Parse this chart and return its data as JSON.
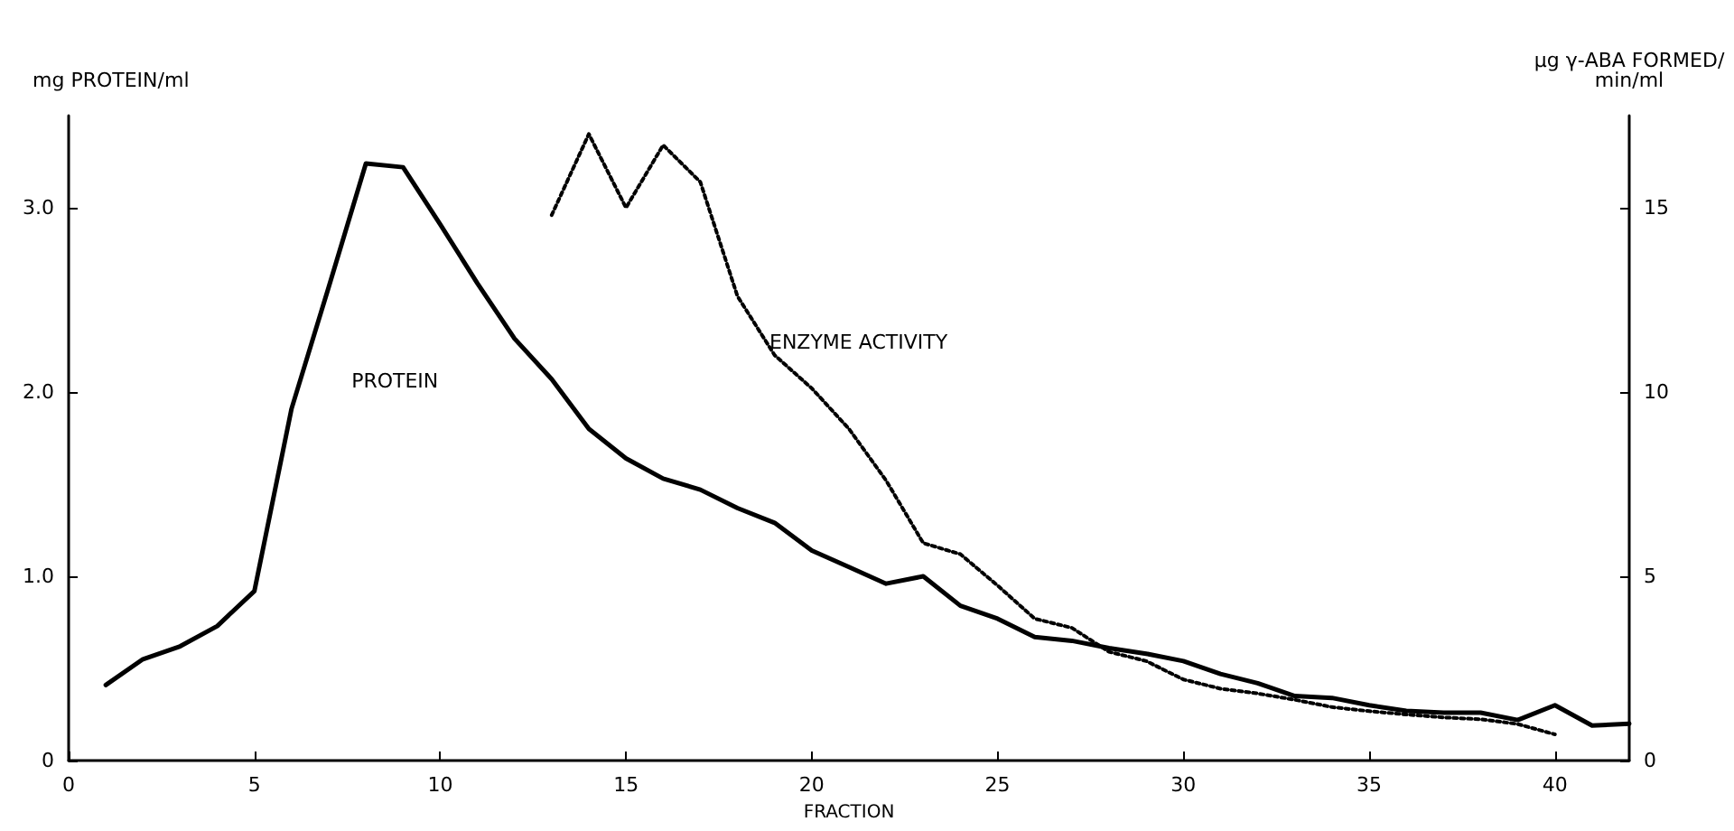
{
  "chart_data": {
    "type": "line",
    "xlabel": "FRACTION",
    "ylabel": "mg PROTEIN/ml",
    "y2label": "µg γ-ABA FORMED/\nmin/ml",
    "xlim": [
      0,
      42
    ],
    "xticks": [
      0,
      5,
      10,
      15,
      20,
      25,
      30,
      35,
      40
    ],
    "ylim": [
      0,
      3.5
    ],
    "yticks": [
      {
        "value": 0,
        "label": "0"
      },
      {
        "value": 1,
        "label": "1.0"
      },
      {
        "value": 2,
        "label": "2.0"
      },
      {
        "value": 3,
        "label": "3.0"
      }
    ],
    "y2lim": [
      0,
      17.5
    ],
    "y2ticks": [
      0,
      5,
      10,
      15
    ],
    "grid": false,
    "legend": false,
    "marker": "none",
    "series": [
      {
        "name": "PROTEIN",
        "color": "#000000",
        "line_style": "solid",
        "x": [
          1,
          2,
          3,
          4,
          5,
          6,
          7,
          8,
          9,
          10,
          11,
          12,
          13,
          14,
          15,
          16,
          17,
          18,
          19,
          20,
          21,
          22,
          23,
          24,
          25,
          26,
          27,
          28,
          29,
          30,
          31,
          32,
          33,
          34,
          35,
          36,
          37,
          38,
          39,
          40,
          41,
          42
        ],
        "values": [
          0.41,
          0.55,
          0.62,
          0.73,
          0.92,
          1.91,
          2.57,
          3.24,
          3.22,
          2.91,
          2.59,
          2.29,
          2.07,
          1.8,
          1.64,
          1.53,
          1.47,
          1.37,
          1.29,
          1.14,
          1.05,
          0.96,
          1.0,
          0.84,
          0.77,
          0.67,
          0.65,
          0.61,
          0.58,
          0.54,
          0.47,
          0.42,
          0.35,
          0.34,
          0.3,
          0.27,
          0.26,
          0.26,
          0.22,
          0.3,
          0.19,
          0.2
        ]
      },
      {
        "name": "ENZYME ACTIVITY",
        "color": "#000000",
        "line_style": "dotted",
        "axis": "y2",
        "x": [
          13,
          14,
          15,
          16,
          17,
          18,
          19,
          20,
          21,
          22,
          23,
          24,
          25,
          26,
          27,
          28,
          29,
          30,
          31,
          32,
          33,
          34,
          35,
          36,
          37,
          38,
          39,
          40
        ],
        "values": [
          14.8,
          17.0,
          15.0,
          16.7,
          15.7,
          12.6,
          11.0,
          10.1,
          9.0,
          7.6,
          5.9,
          5.6,
          4.75,
          3.85,
          3.6,
          2.95,
          2.7,
          2.2,
          1.95,
          1.82,
          1.65,
          1.45,
          1.34,
          1.25,
          1.17,
          1.12,
          0.99,
          0.71
        ]
      }
    ]
  }
}
